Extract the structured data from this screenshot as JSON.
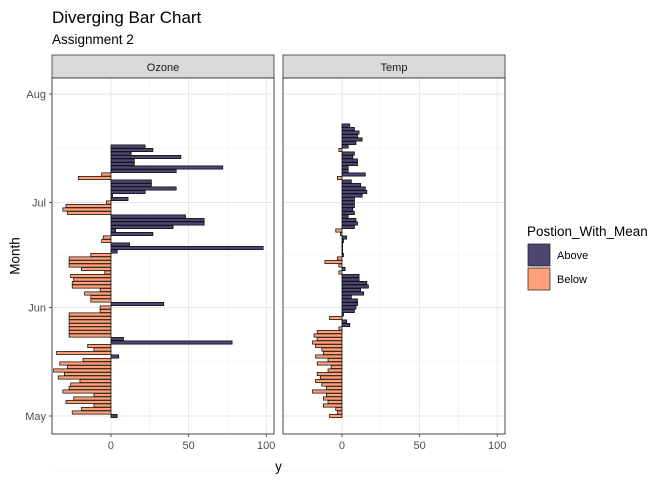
{
  "chart_data": {
    "type": "bar",
    "orientation": "horizontal",
    "title": "Diverging Bar Chart",
    "subtitle": "Assignment 2",
    "xlabel": "y",
    "ylabel": "Month",
    "xlim": [
      -38,
      105
    ],
    "x_ticks": [
      "0",
      "50",
      "100"
    ],
    "y_ticks": [
      "May",
      "Jun",
      "Jul",
      "Aug"
    ],
    "grid": true,
    "legend": {
      "title": "Postion_With_Mean",
      "position": "right",
      "entries": [
        {
          "label": "Above",
          "color": "#4e4670"
        },
        {
          "label": "Below",
          "color": "#ffa07a"
        }
      ]
    },
    "panels": [
      {
        "name": "Ozone",
        "values": [
          4,
          -25,
          -19,
          -11,
          -29,
          -24,
          -11,
          -31,
          -27,
          -26,
          -20,
          -34,
          -30,
          -37,
          -28,
          -33,
          -18,
          5,
          -35,
          -11,
          -15,
          78,
          8,
          -27,
          -27,
          -27,
          -27,
          -27,
          -27,
          -27,
          -7,
          -7,
          34,
          -13,
          -13,
          -17,
          -7,
          -25,
          -25,
          -24,
          -26,
          -4,
          -19,
          -27,
          -27,
          -27,
          -13,
          4,
          98,
          12,
          -6,
          -5,
          27,
          3,
          40,
          60,
          60,
          48,
          -28,
          -31,
          -29,
          -3,
          11,
          1,
          22,
          42,
          26,
          26,
          -21,
          -6,
          42,
          72,
          15,
          15,
          45,
          13,
          27,
          22
        ],
        "categories_note": "one bar per day, May 1 (bottom) to Aug 8 (top)"
      },
      {
        "name": "Temp",
        "values": [
          -8,
          -3,
          -4,
          -12,
          -9,
          -12,
          -10,
          -19,
          -10,
          -13,
          -17,
          -14,
          -16,
          -9,
          -7,
          -16,
          -9,
          -17,
          -12,
          -13,
          -17,
          -19,
          -16,
          -18,
          -16,
          -2,
          5,
          3,
          -8,
          1,
          8,
          9,
          10,
          10,
          6,
          14,
          12,
          17,
          16,
          11,
          11,
          -2,
          2,
          -2,
          -11,
          -3,
          1,
          0,
          0,
          0,
          1,
          3,
          -1,
          -4,
          8,
          10,
          9,
          4,
          8,
          7,
          8,
          8,
          8,
          13,
          16,
          15,
          12,
          6,
          -3,
          15,
          4,
          4,
          10,
          10,
          7,
          8,
          -2,
          4,
          9,
          13,
          10,
          11,
          8,
          5
        ]
      }
    ]
  }
}
